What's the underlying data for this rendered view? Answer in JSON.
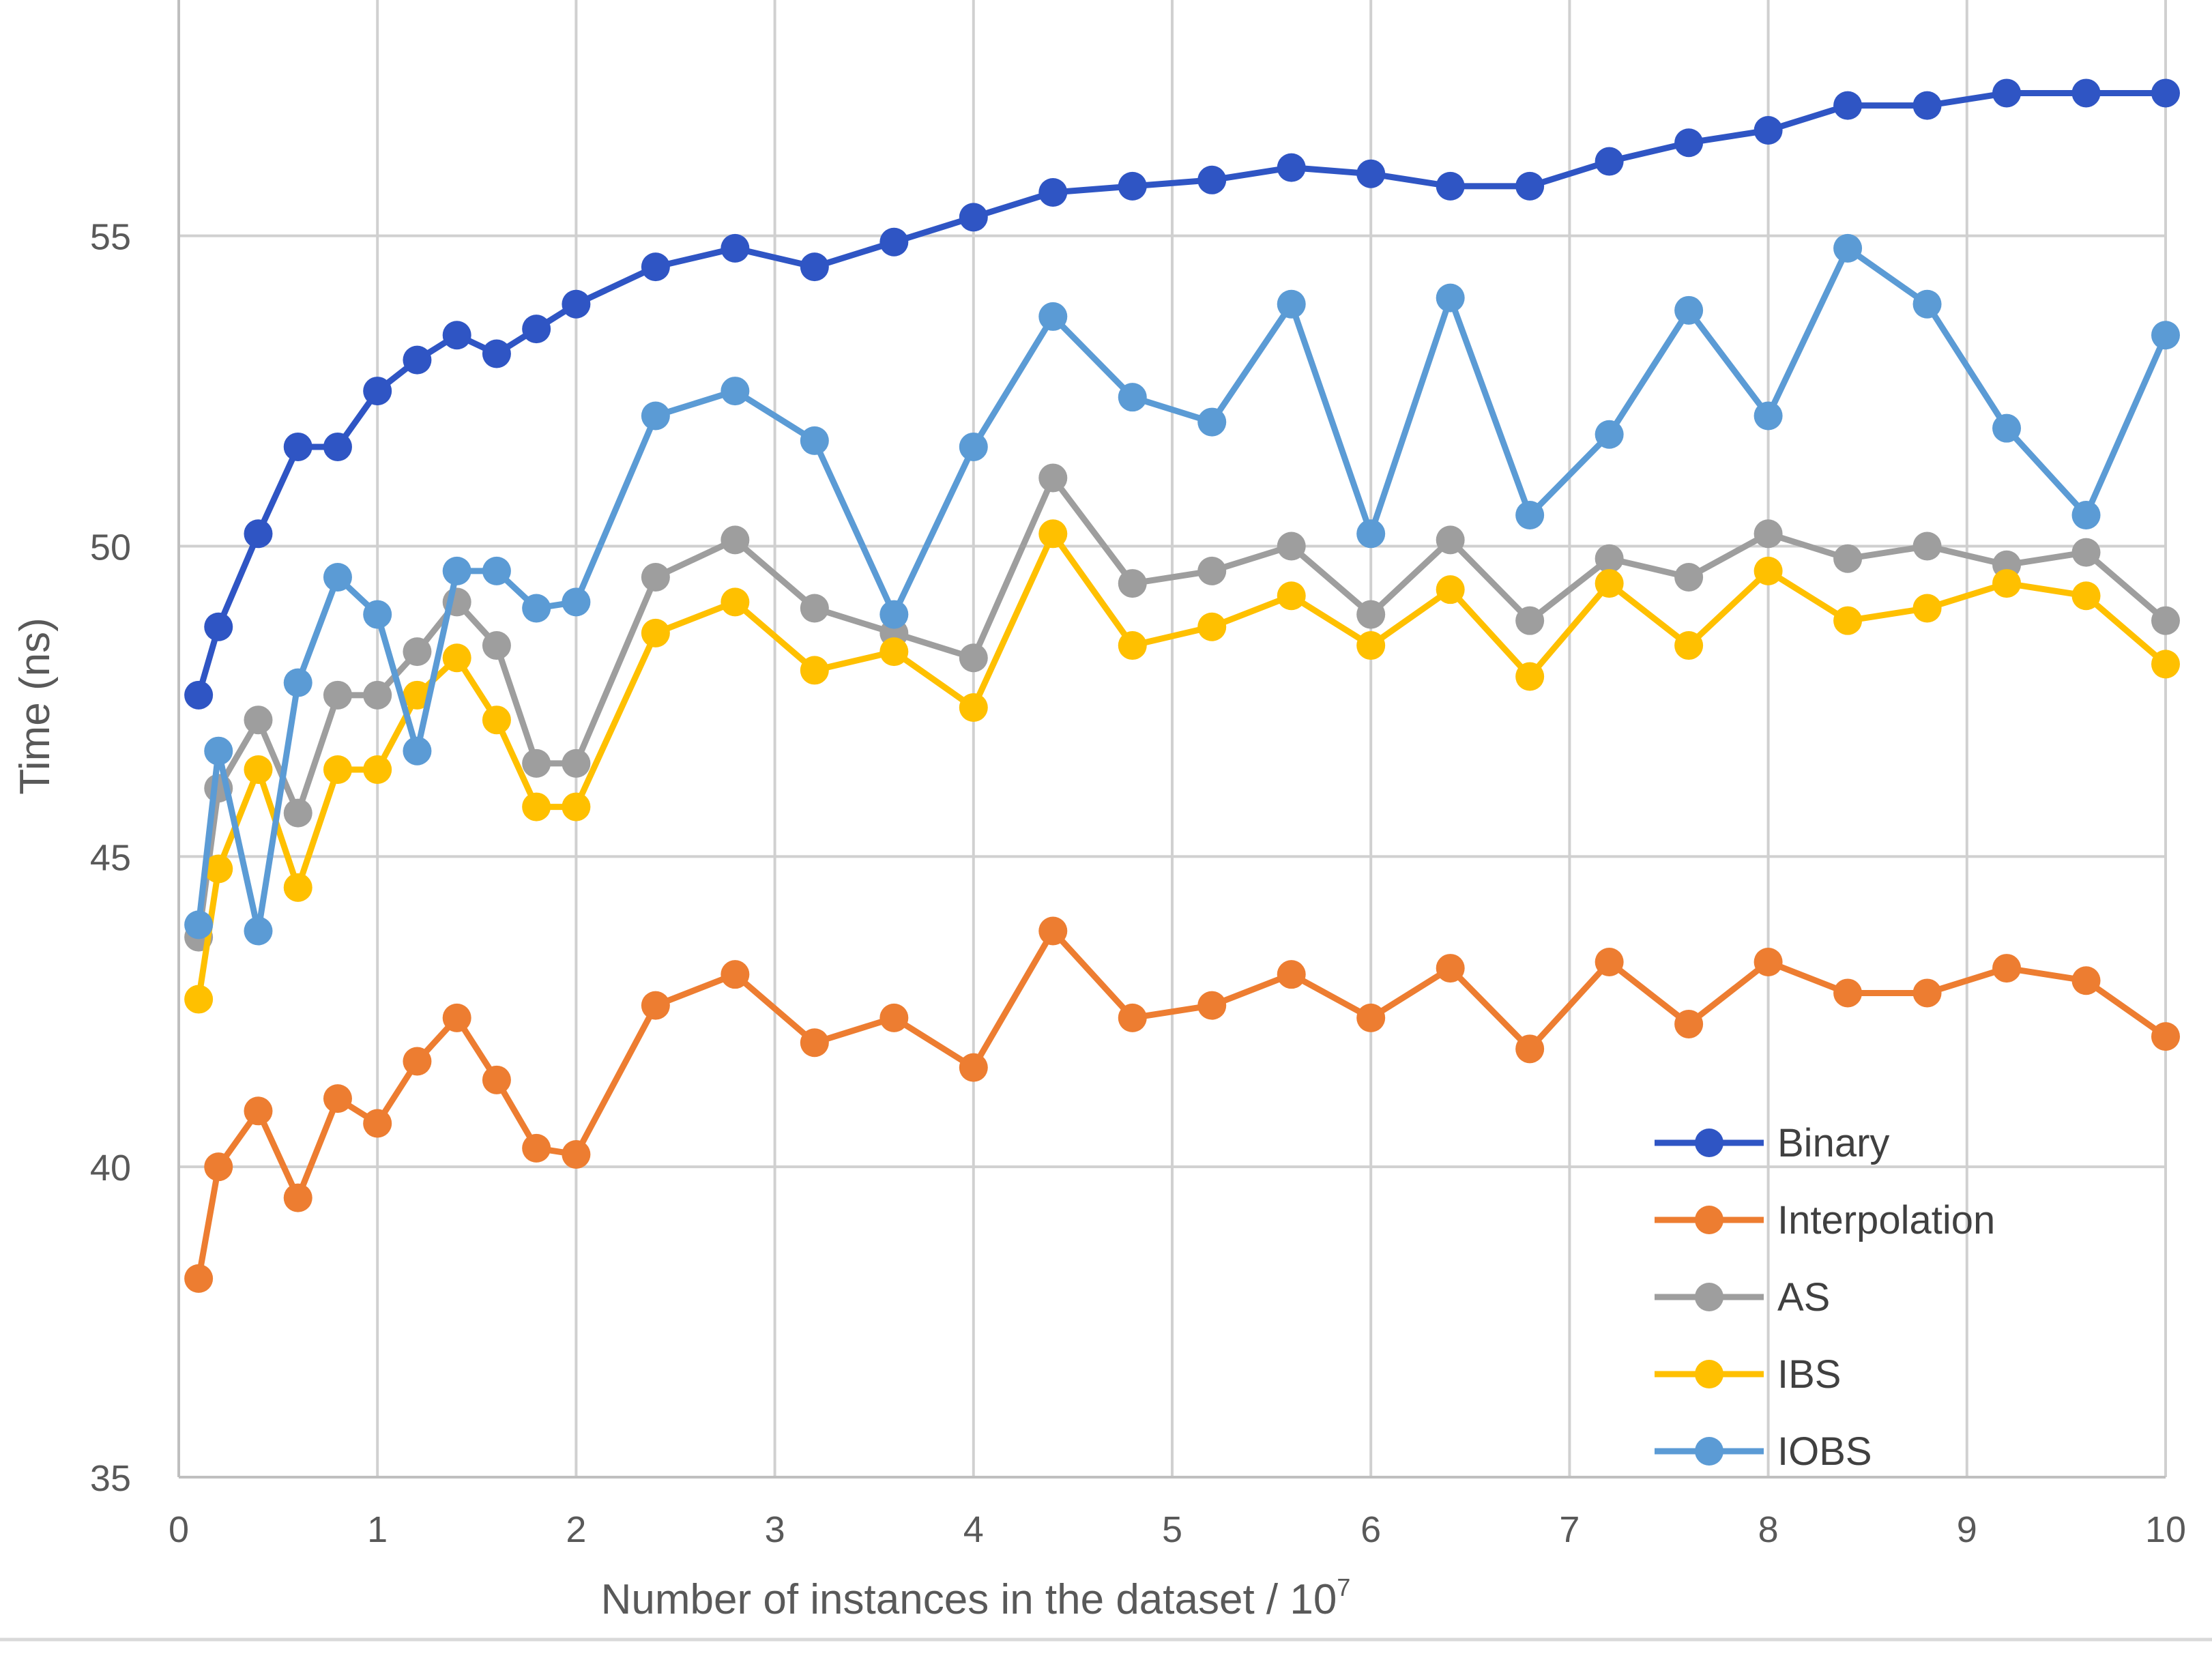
{
  "chart_data": {
    "type": "line",
    "title": "",
    "xlabel": "Number of instances in the dataset / 10",
    "xlabel_superscript": "7",
    "ylabel": "Time (ns)",
    "xlim": [
      0,
      10
    ],
    "ylim": [
      35,
      58.8
    ],
    "xticks": [
      0,
      1,
      2,
      3,
      4,
      5,
      6,
      7,
      8,
      9,
      10
    ],
    "yticks": [
      35,
      40,
      45,
      50,
      55
    ],
    "grid": true,
    "legend_position": "bottom-right",
    "x": [
      0.1,
      0.2,
      0.4,
      0.6,
      0.8,
      1.0,
      1.2,
      1.4,
      1.6,
      1.8,
      2.0,
      2.4,
      2.8,
      3.2,
      3.6,
      4.0,
      4.4,
      4.8,
      5.2,
      5.6,
      6.0,
      6.4,
      6.8,
      7.2,
      7.6,
      8.0,
      8.4,
      8.8,
      9.2,
      9.6,
      10.0
    ],
    "series": [
      {
        "name": "Binary",
        "color": "#2f55c4",
        "values": [
          47.6,
          48.7,
          50.2,
          51.6,
          51.6,
          52.5,
          53.0,
          53.4,
          53.1,
          53.5,
          53.9,
          54.5,
          54.8,
          54.5,
          54.9,
          55.3,
          55.7,
          55.8,
          55.9,
          56.1,
          56.0,
          55.8,
          55.8,
          56.2,
          56.5,
          56.7,
          57.1,
          57.1,
          57.3,
          57.3,
          57.3
        ]
      },
      {
        "name": "Interpolation",
        "color": "#ed7d31",
        "values": [
          38.2,
          40.0,
          40.9,
          39.5,
          41.1,
          40.7,
          41.7,
          42.4,
          41.4,
          40.3,
          40.2,
          42.6,
          43.1,
          42.0,
          42.4,
          41.6,
          43.8,
          42.4,
          42.6,
          43.1,
          42.4,
          43.2,
          41.9,
          43.3,
          42.3,
          43.3,
          42.8,
          42.8,
          43.2,
          43.0,
          42.1
        ]
      },
      {
        "name": "AS",
        "color": "#9e9e9e",
        "values": [
          43.7,
          46.1,
          47.2,
          45.7,
          47.6,
          47.6,
          48.3,
          49.1,
          48.4,
          46.5,
          46.5,
          49.5,
          50.1,
          49.0,
          48.6,
          48.2,
          51.1,
          49.4,
          49.6,
          50.0,
          48.9,
          50.1,
          48.8,
          49.8,
          49.5,
          50.2,
          49.8,
          50.0,
          49.7,
          49.9,
          48.8
        ]
      },
      {
        "name": "IBS",
        "color": "#ffc000",
        "values": [
          42.7,
          44.8,
          46.4,
          44.5,
          46.4,
          46.4,
          47.6,
          48.2,
          47.2,
          45.8,
          45.8,
          48.6,
          49.1,
          48.0,
          48.3,
          47.4,
          50.2,
          48.4,
          48.7,
          49.2,
          48.4,
          49.3,
          47.9,
          49.4,
          48.4,
          49.6,
          48.8,
          49.0,
          49.4,
          49.2,
          48.1
        ]
      },
      {
        "name": "IOBS",
        "color": "#5b9bd5",
        "values": [
          43.9,
          46.7,
          43.8,
          47.8,
          49.5,
          48.9,
          46.7,
          49.6,
          49.6,
          49.0,
          49.1,
          52.1,
          52.5,
          51.7,
          48.9,
          51.6,
          53.7,
          52.4,
          52.0,
          53.9,
          50.2,
          54.0,
          50.5,
          51.8,
          53.8,
          52.1,
          54.8,
          53.9,
          51.9,
          50.5,
          53.4
        ]
      }
    ]
  }
}
